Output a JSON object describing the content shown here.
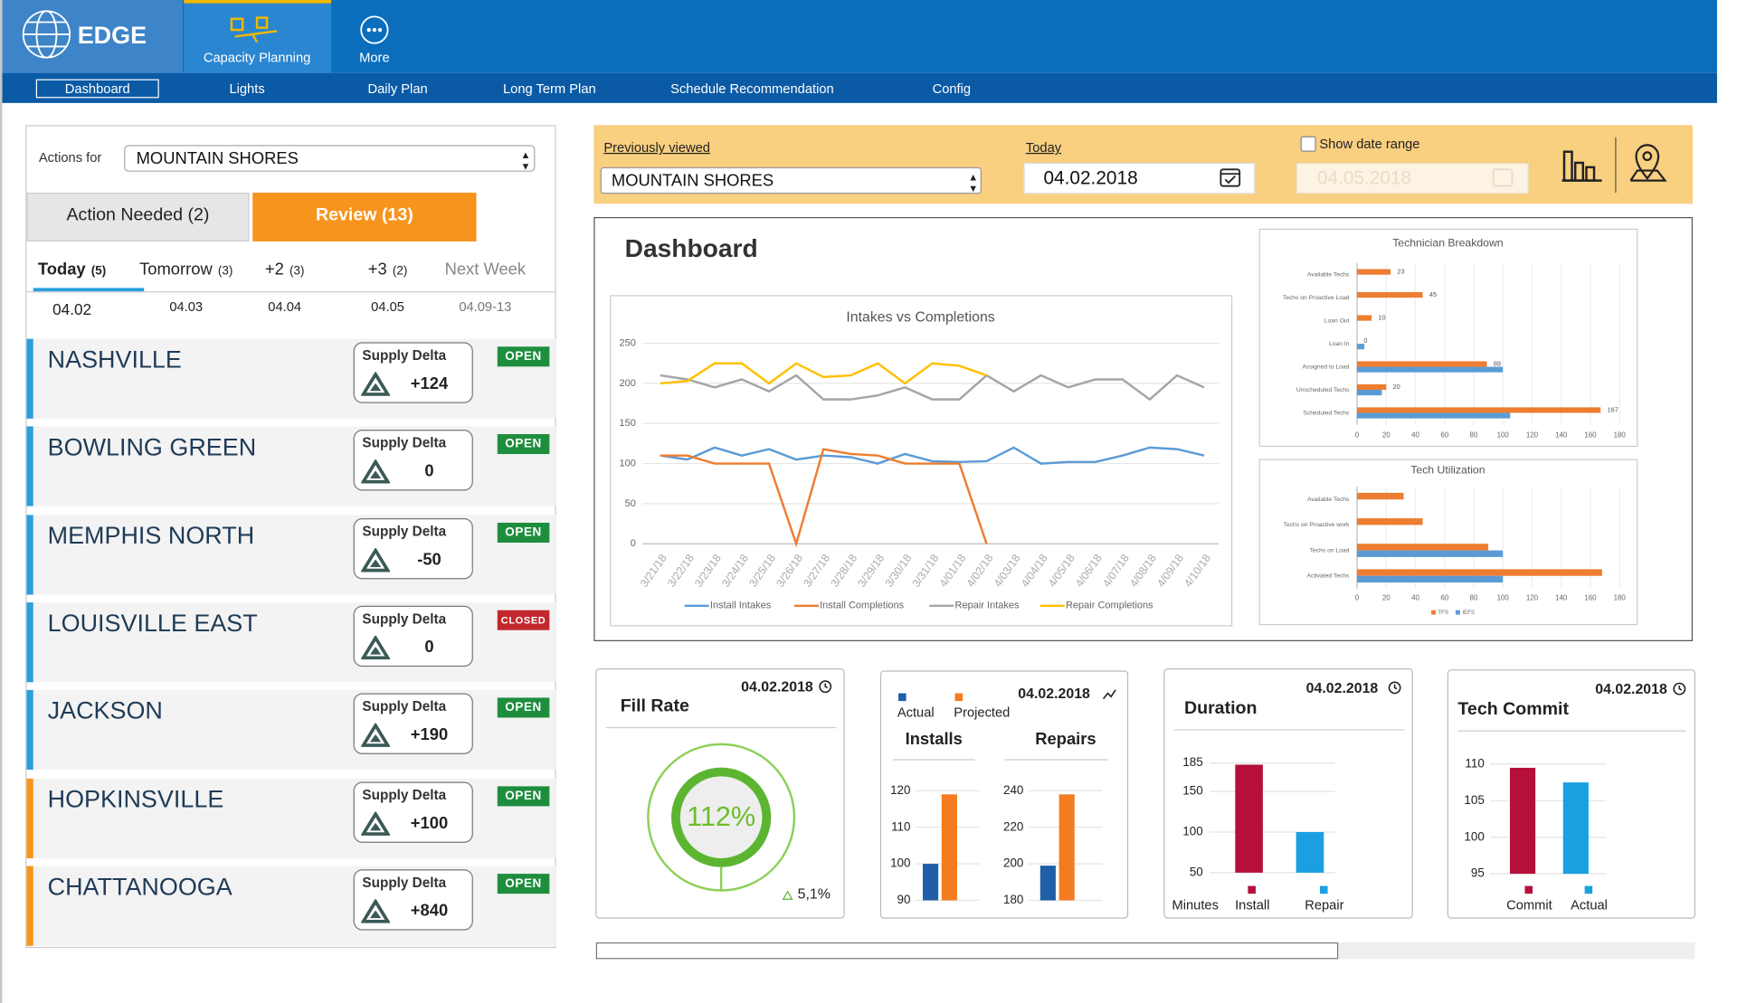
{
  "nav": {
    "logo": "EDGE",
    "tabs": [
      "Capacity Planning",
      "More"
    ],
    "subnav": [
      "Dashboard",
      "Lights",
      "Daily Plan",
      "Long Term Plan",
      "Schedule Recommendation",
      "Config"
    ]
  },
  "sidebar": {
    "actions_label": "Actions for",
    "actions_value": "MOUNTAIN SHORES",
    "tabs": [
      "Action Needed (2)",
      "Review (13)"
    ],
    "days": [
      {
        "label": "Today",
        "count": "(5)",
        "date": "04.02"
      },
      {
        "label": "Tomorrow",
        "count": "(3)",
        "date": "04.03"
      },
      {
        "label": "+2",
        "count": "(3)",
        "date": "04.04"
      },
      {
        "label": "+3",
        "count": "(2)",
        "date": "04.05"
      },
      {
        "label": "Next Week",
        "date": "04.09-13"
      }
    ],
    "delta_label": "Supply Delta",
    "locations": [
      {
        "name": "NASHVILLE",
        "delta": "+124",
        "status": "OPEN",
        "status_color": "#1e8e3e",
        "color": "#2aa0dc"
      },
      {
        "name": "BOWLING GREEN",
        "delta": "0",
        "status": "OPEN",
        "status_color": "#1e8e3e",
        "color": "#2aa0dc"
      },
      {
        "name": "MEMPHIS NORTH",
        "delta": "-50",
        "status": "OPEN",
        "status_color": "#1e8e3e",
        "color": "#2aa0dc"
      },
      {
        "name": "LOUISVILLE EAST",
        "delta": "0",
        "status": "CLOSED",
        "status_color": "#c0282d",
        "color": "#2aa0dc"
      },
      {
        "name": "JACKSON",
        "delta": "+190",
        "status": "OPEN",
        "status_color": "#1e8e3e",
        "color": "#2aa0dc"
      },
      {
        "name": "HOPKINSVILLE",
        "delta": "+100",
        "status": "OPEN",
        "status_color": "#1e8e3e",
        "color": "#f7941d"
      },
      {
        "name": "CHATTANOOGA",
        "delta": "+840",
        "status": "OPEN",
        "status_color": "#1e8e3e",
        "color": "#f7941d"
      }
    ]
  },
  "filters": {
    "previous_label": "Previously viewed",
    "previous_value": "MOUNTAIN SHORES",
    "today_label": "Today",
    "today_value": "04.02.2018",
    "range_label": "Show date range",
    "range_value": "04.05.2018"
  },
  "dashboard": {
    "title": "Dashboard",
    "intakes": {
      "type": "line",
      "title": "Intakes vs Completions",
      "categories": [
        "3/21/18",
        "3/22/18",
        "3/23/18",
        "3/24/18",
        "3/25/18",
        "3/26/18",
        "3/27/18",
        "3/28/18",
        "3/29/18",
        "3/30/18",
        "3/31/18",
        "4/01/18",
        "4/02/18",
        "4/03/18",
        "4/04/18",
        "4/05/18",
        "4/06/18",
        "4/07/18",
        "4/08/18",
        "4/09/18",
        "4/10/18"
      ],
      "ylim": [
        0,
        250
      ],
      "yticks": [
        0,
        50,
        100,
        150,
        200,
        250
      ],
      "grid": true,
      "series": [
        {
          "name": "Install Intakes",
          "color": "#5b9bd5",
          "values": [
            110,
            105,
            120,
            110,
            118,
            105,
            110,
            108,
            100,
            112,
            103,
            102,
            103,
            120,
            100,
            102,
            102,
            110,
            120,
            118,
            110
          ]
        },
        {
          "name": "Install Completions",
          "color": "#ed7d31",
          "values": [
            110,
            110,
            100,
            100,
            100,
            0,
            118,
            112,
            110,
            100,
            100,
            100,
            0,
            null,
            null,
            null,
            null,
            null,
            null,
            null,
            null
          ]
        },
        {
          "name": "Repair Intakes",
          "color": "#a5a5a5",
          "values": [
            210,
            205,
            195,
            205,
            190,
            210,
            180,
            180,
            185,
            195,
            180,
            180,
            210,
            190,
            210,
            195,
            205,
            205,
            180,
            210,
            195
          ]
        },
        {
          "name": "Repair Completions",
          "color": "#ffc000",
          "values": [
            200,
            203,
            225,
            225,
            200,
            225,
            208,
            210,
            225,
            200,
            225,
            222,
            210,
            null,
            null,
            null,
            null,
            null,
            null,
            null,
            null
          ]
        }
      ]
    },
    "breakdown": {
      "type": "hbar",
      "title": "Technician Breakdown",
      "categories": [
        "Available Techs",
        "Techs on Proactive Load",
        "Loan Out",
        "Loan In",
        "Assigned to Load",
        "Unscheduled Techs",
        "Scheduled Techs"
      ],
      "xlim": [
        0,
        180
      ],
      "xticks": [
        0,
        20,
        40,
        60,
        80,
        100,
        120,
        140,
        160,
        180
      ],
      "series": [
        {
          "color": "#ed7d31",
          "values": [
            23,
            45,
            10,
            0,
            89,
            20,
            167
          ]
        },
        {
          "color": "#5b9bd5",
          "values": [
            null,
            null,
            null,
            5,
            100,
            17,
            105
          ]
        }
      ]
    },
    "utilization": {
      "type": "hbar",
      "title": "Tech Utilization",
      "categories": [
        "Available Techs",
        "Techs on Proactive work",
        "Techs on Load",
        "Activated Techs"
      ],
      "xlim": [
        0,
        180
      ],
      "xticks": [
        0,
        20,
        40,
        60,
        80,
        100,
        120,
        140,
        160,
        180
      ],
      "series": [
        {
          "name": "TFS",
          "color": "#ed7d31",
          "values": [
            32,
            45,
            90,
            168
          ]
        },
        {
          "name": "IEFS",
          "color": "#5b9bd5",
          "values": [
            null,
            null,
            100,
            100
          ]
        }
      ]
    }
  },
  "cards": {
    "fill_rate": {
      "date": "04.02.2018",
      "title": "Fill Rate",
      "value": 112,
      "value_label": "112%",
      "change": "5,1%",
      "color": "#5cb531"
    },
    "installs": {
      "date": "04.02.2018",
      "series": [
        {
          "name": "Actual",
          "color": "#1f5fa8"
        },
        {
          "name": "Projected",
          "color": "#f47b20"
        }
      ],
      "charts": [
        {
          "title": "Installs",
          "ylim": [
            90,
            120
          ],
          "yticks": [
            90,
            100,
            110,
            120
          ],
          "values": [
            100,
            119
          ]
        },
        {
          "title": "Repairs",
          "ylim": [
            180,
            240
          ],
          "yticks": [
            180,
            200,
            220,
            240
          ],
          "values": [
            199,
            238
          ]
        }
      ]
    },
    "duration": {
      "date": "04.02.2018",
      "title": "Duration",
      "axis_label": "Minutes",
      "categories": [
        "Install",
        "Repair"
      ],
      "colors": [
        "#b5103c",
        "#1aa0e0"
      ],
      "values": [
        183,
        100
      ],
      "ylim": [
        50,
        185
      ],
      "yticks": [
        50,
        100,
        150,
        185
      ]
    },
    "commit": {
      "date": "04.02.2018",
      "title": "Tech Commit",
      "categories": [
        "Commit",
        "Actual"
      ],
      "colors": [
        "#b5103c",
        "#1aa0e0"
      ],
      "values": [
        109.5,
        107.5
      ],
      "ylim": [
        95,
        110
      ],
      "yticks": [
        95,
        100,
        105,
        110
      ]
    }
  }
}
